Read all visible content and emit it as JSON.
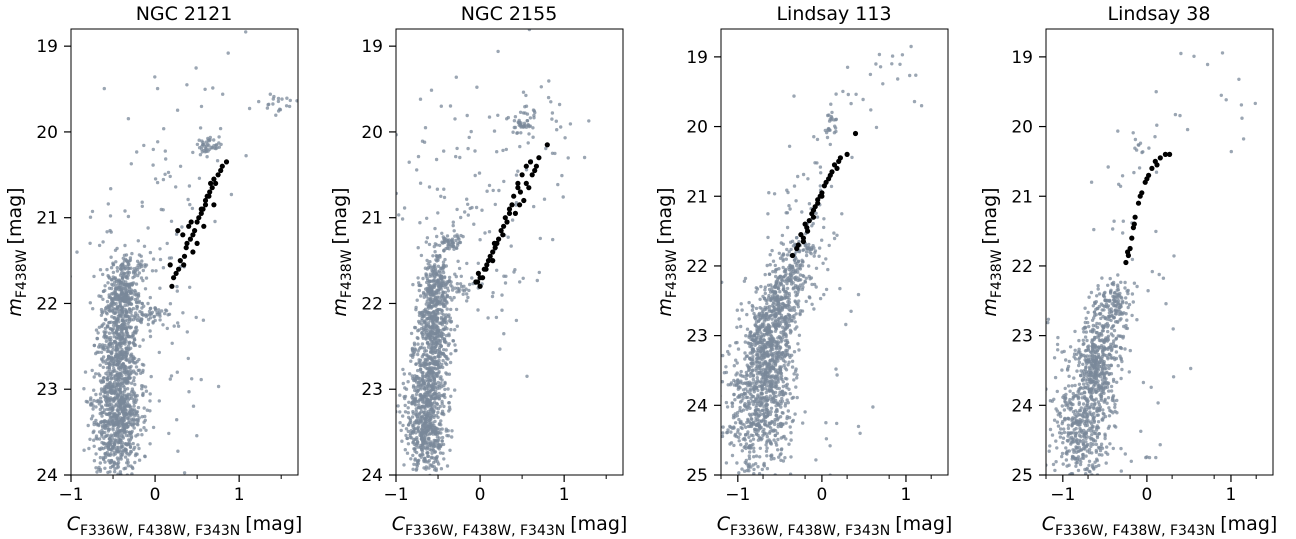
{
  "figure": {
    "colors": {
      "background_stars": "#7a8899",
      "highlight_stars": "#000000",
      "axes": "#000000"
    },
    "ylabel_main": "m",
    "ylabel_sub": "F438W",
    "ylabel_unit": "[mag]",
    "xlabel_main": "C",
    "xlabel_sub": "F336W, F438W, F343N",
    "xlabel_unit": "[mag]"
  },
  "chart_data": [
    {
      "type": "scatter",
      "title": "NGC 2121",
      "xlim": [
        -1,
        1.7
      ],
      "ylim": [
        24,
        18.8
      ],
      "xticks": [
        -1,
        0,
        1
      ],
      "yticks": [
        19,
        20,
        21,
        22,
        23,
        24
      ],
      "grid": false,
      "legend": "none",
      "seed": 11,
      "series": [
        {
          "role": "field",
          "clumps": [
            {
              "x": -0.45,
              "y": 23.4,
              "sx": 0.14,
              "sy": 0.35,
              "n": 700
            },
            {
              "x": -0.42,
              "y": 22.5,
              "sx": 0.12,
              "sy": 0.35,
              "n": 550
            },
            {
              "x": -0.38,
              "y": 21.9,
              "sx": 0.1,
              "sy": 0.15,
              "n": 220
            },
            {
              "x": -0.3,
              "y": 21.55,
              "sx": 0.12,
              "sy": 0.06,
              "n": 60
            },
            {
              "x": -0.05,
              "y": 22.15,
              "sx": 0.12,
              "sy": 0.05,
              "n": 50
            },
            {
              "x": 0.62,
              "y": 20.15,
              "sx": 0.07,
              "sy": 0.07,
              "n": 45
            },
            {
              "x": 0.2,
              "y": 21.6,
              "sx": 0.3,
              "sy": 1.2,
              "n": 90
            },
            {
              "x": 1.45,
              "y": 19.65,
              "sx": 0.12,
              "sy": 0.08,
              "n": 22
            },
            {
              "x": -0.6,
              "y": 21.4,
              "sx": 0.25,
              "sy": 0.4,
              "n": 30
            },
            {
              "x": 0.5,
              "y": 19.5,
              "sx": 0.4,
              "sy": 0.4,
              "n": 12
            }
          ]
        },
        {
          "role": "highlighted",
          "x": [
            0.22,
            0.28,
            0.35,
            0.38,
            0.45,
            0.5,
            0.55,
            0.6,
            0.65,
            0.7,
            0.78,
            0.85,
            0.3,
            0.42,
            0.52,
            0.6,
            0.68,
            0.75,
            0.25,
            0.34,
            0.47,
            0.57,
            0.64,
            0.72,
            0.2,
            0.33,
            0.4,
            0.55,
            0.62,
            0.7,
            0.18,
            0.5,
            0.8,
            0.37,
            0.45,
            0.66,
            0.27,
            0.58,
            0.43
          ],
          "y": [
            21.7,
            21.6,
            21.45,
            21.3,
            21.2,
            21.05,
            20.95,
            20.8,
            20.7,
            20.55,
            20.45,
            20.35,
            21.5,
            21.25,
            21.0,
            20.85,
            20.65,
            20.5,
            21.65,
            21.55,
            21.15,
            20.9,
            20.75,
            20.6,
            21.8,
            21.2,
            21.1,
            20.9,
            20.75,
            20.85,
            21.55,
            21.3,
            20.4,
            21.35,
            21.4,
            20.6,
            21.15,
            21.1,
            21.05
          ]
        }
      ]
    },
    {
      "type": "scatter",
      "title": "NGC 2155",
      "xlim": [
        -1,
        1.7
      ],
      "ylim": [
        24,
        18.8
      ],
      "xticks": [
        -1,
        0,
        1
      ],
      "yticks": [
        19,
        20,
        21,
        22,
        23,
        24
      ],
      "grid": false,
      "legend": "none",
      "seed": 23,
      "series": [
        {
          "role": "field",
          "clumps": [
            {
              "x": -0.65,
              "y": 23.3,
              "sx": 0.12,
              "sy": 0.4,
              "n": 700
            },
            {
              "x": -0.55,
              "y": 22.3,
              "sx": 0.1,
              "sy": 0.35,
              "n": 500
            },
            {
              "x": -0.5,
              "y": 21.7,
              "sx": 0.08,
              "sy": 0.2,
              "n": 150
            },
            {
              "x": -0.35,
              "y": 21.3,
              "sx": 0.08,
              "sy": 0.05,
              "n": 50
            },
            {
              "x": -0.25,
              "y": 21.8,
              "sx": 0.2,
              "sy": 0.08,
              "n": 50
            },
            {
              "x": 0.5,
              "y": 19.9,
              "sx": 0.06,
              "sy": 0.07,
              "n": 40
            },
            {
              "x": 0.2,
              "y": 20.8,
              "sx": 0.4,
              "sy": 0.8,
              "n": 90
            },
            {
              "x": 0.8,
              "y": 19.8,
              "sx": 0.2,
              "sy": 0.3,
              "n": 20
            },
            {
              "x": -0.5,
              "y": 20.8,
              "sx": 0.3,
              "sy": 0.5,
              "n": 40
            }
          ]
        },
        {
          "role": "highlighted",
          "x": [
            -0.05,
            0.0,
            0.05,
            0.1,
            0.15,
            0.2,
            0.25,
            0.3,
            0.35,
            0.4,
            0.45,
            0.5,
            0.55,
            0.6,
            0.65,
            0.7,
            0.8,
            -0.02,
            0.08,
            0.18,
            0.28,
            0.38,
            0.48,
            0.58,
            0.0,
            0.12,
            0.22,
            0.32,
            0.42,
            0.52,
            0.62,
            0.03,
            0.15,
            0.35,
            0.45,
            0.55,
            0.07,
            0.27,
            0.47,
            0.67,
            -0.03,
            0.17
          ],
          "y": [
            21.75,
            21.7,
            21.6,
            21.5,
            21.4,
            21.3,
            21.15,
            21.0,
            20.9,
            20.75,
            20.6,
            20.5,
            20.4,
            20.35,
            20.45,
            20.3,
            20.15,
            21.65,
            21.55,
            21.35,
            21.1,
            20.85,
            20.7,
            20.65,
            21.8,
            21.45,
            21.25,
            21.05,
            20.95,
            20.8,
            20.5,
            21.7,
            21.5,
            20.95,
            20.65,
            20.6,
            21.6,
            21.2,
            20.85,
            20.4,
            21.75,
            21.3
          ]
        }
      ]
    },
    {
      "type": "scatter",
      "title": "Lindsay 113",
      "xlim": [
        -1.2,
        1.5
      ],
      "ylim": [
        25,
        18.6
      ],
      "xticks": [
        -1,
        0,
        1
      ],
      "yticks": [
        19,
        20,
        21,
        22,
        23,
        24,
        25
      ],
      "grid": false,
      "legend": "none",
      "seed": 37,
      "series": [
        {
          "role": "field",
          "clumps": [
            {
              "x": -0.75,
              "y": 24.1,
              "sx": 0.18,
              "sy": 0.5,
              "n": 550
            },
            {
              "x": -0.65,
              "y": 23.2,
              "sx": 0.14,
              "sy": 0.4,
              "n": 500
            },
            {
              "x": -0.5,
              "y": 22.6,
              "sx": 0.12,
              "sy": 0.3,
              "n": 250
            },
            {
              "x": -0.35,
              "y": 22.1,
              "sx": 0.12,
              "sy": 0.2,
              "n": 120
            },
            {
              "x": -0.25,
              "y": 21.75,
              "sx": 0.15,
              "sy": 0.06,
              "n": 40
            },
            {
              "x": 0.1,
              "y": 19.95,
              "sx": 0.04,
              "sy": 0.12,
              "n": 25
            },
            {
              "x": -0.15,
              "y": 21.3,
              "sx": 0.2,
              "sy": 0.5,
              "n": 60
            },
            {
              "x": 0.7,
              "y": 19.4,
              "sx": 0.3,
              "sy": 0.4,
              "n": 25
            },
            {
              "x": -0.5,
              "y": 23.5,
              "sx": 0.5,
              "sy": 0.9,
              "n": 60
            }
          ]
        },
        {
          "role": "highlighted",
          "x": [
            -0.35,
            -0.28,
            -0.22,
            -0.18,
            -0.15,
            -0.1,
            -0.05,
            0.0,
            0.05,
            0.1,
            0.15,
            0.22,
            0.3,
            0.4,
            -0.25,
            -0.2,
            -0.12,
            -0.08,
            -0.02,
            0.03,
            0.12,
            0.2,
            -0.3,
            -0.17,
            -0.05,
            0.08,
            0.18,
            -0.22,
            -0.1,
            0.0
          ],
          "y": [
            21.85,
            21.7,
            21.6,
            21.45,
            21.35,
            21.2,
            21.05,
            20.95,
            20.8,
            20.7,
            20.55,
            20.45,
            20.4,
            20.1,
            21.55,
            21.4,
            21.25,
            21.15,
            21.0,
            20.85,
            20.65,
            20.5,
            21.75,
            21.5,
            21.1,
            20.75,
            20.6,
            21.65,
            21.3,
            21.0
          ]
        }
      ]
    },
    {
      "type": "scatter",
      "title": "Lindsay 38",
      "xlim": [
        -1.2,
        1.5
      ],
      "ylim": [
        25,
        18.6
      ],
      "xticks": [
        -1,
        0,
        1
      ],
      "yticks": [
        19,
        20,
        21,
        22,
        23,
        24,
        25
      ],
      "grid": false,
      "legend": "none",
      "seed": 53,
      "series": [
        {
          "role": "field",
          "clumps": [
            {
              "x": -0.75,
              "y": 24.3,
              "sx": 0.18,
              "sy": 0.45,
              "n": 420
            },
            {
              "x": -0.6,
              "y": 23.5,
              "sx": 0.14,
              "sy": 0.35,
              "n": 350
            },
            {
              "x": -0.5,
              "y": 22.9,
              "sx": 0.12,
              "sy": 0.3,
              "n": 150
            },
            {
              "x": -0.38,
              "y": 22.5,
              "sx": 0.1,
              "sy": 0.15,
              "n": 80
            },
            {
              "x": -0.1,
              "y": 20.3,
              "sx": 0.04,
              "sy": 0.1,
              "n": 10
            },
            {
              "x": -0.1,
              "y": 21.5,
              "sx": 0.25,
              "sy": 0.6,
              "n": 25
            },
            {
              "x": 0.8,
              "y": 19.7,
              "sx": 0.4,
              "sy": 0.5,
              "n": 18
            },
            {
              "x": -0.5,
              "y": 23.8,
              "sx": 0.5,
              "sy": 0.9,
              "n": 50
            }
          ]
        },
        {
          "role": "highlighted",
          "x": [
            -0.25,
            -0.22,
            -0.2,
            -0.18,
            -0.16,
            -0.14,
            -0.1,
            -0.06,
            -0.02,
            0.02,
            0.06,
            0.1,
            0.16,
            0.22,
            0.27,
            -0.23,
            -0.15,
            -0.08,
            0.0,
            0.12
          ],
          "y": [
            21.95,
            21.85,
            21.75,
            21.6,
            21.45,
            21.3,
            21.1,
            20.95,
            20.8,
            20.7,
            20.6,
            20.5,
            20.45,
            20.4,
            20.4,
            21.8,
            21.4,
            21.0,
            20.75,
            20.55
          ]
        }
      ]
    }
  ]
}
